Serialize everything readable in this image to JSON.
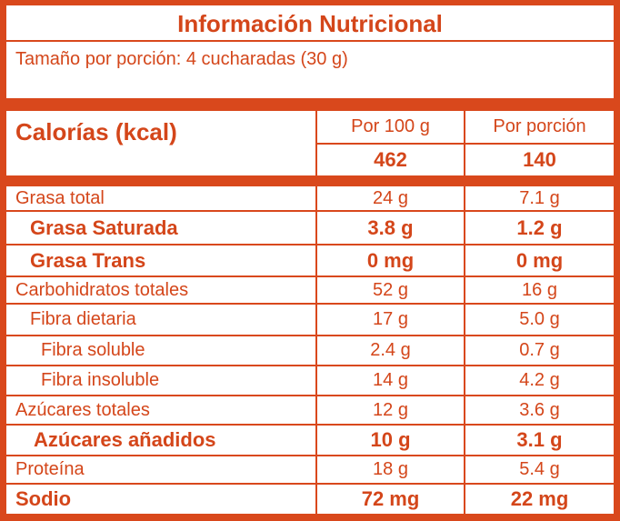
{
  "title": "Información Nutricional",
  "serving": "Tamaño por porción: 4 cucharadas (30 g)",
  "calories": {
    "label": "Calorías (kcal)",
    "headers": [
      "Por 100 g",
      "Por porción"
    ],
    "values": [
      "462",
      "140"
    ]
  },
  "rows": [
    {
      "label": "Grasa total",
      "values": [
        "24 g",
        "7.1 g"
      ]
    },
    {
      "label": "Grasa Saturada",
      "values": [
        "3.8 g",
        "1.2 g"
      ]
    },
    {
      "label": "Grasa Trans",
      "values": [
        "0 mg",
        "0 mg"
      ]
    },
    {
      "label": "Carbohidratos totales",
      "values": [
        "52 g",
        "16 g"
      ]
    },
    {
      "label": "Fibra dietaria",
      "values": [
        "17 g",
        "5.0 g"
      ]
    },
    {
      "label": "Fibra soluble",
      "values": [
        "2.4 g",
        "0.7 g"
      ]
    },
    {
      "label": "Fibra insoluble",
      "values": [
        "14 g",
        "4.2 g"
      ]
    },
    {
      "label": "Azúcares totales",
      "values": [
        "12 g",
        "3.6 g"
      ]
    },
    {
      "label": "Azúcares añadidos",
      "values": [
        "10 g",
        "3.1 g"
      ]
    },
    {
      "label": "Proteína",
      "values": [
        "18 g",
        "5.4 g"
      ]
    },
    {
      "label": "Sodio",
      "values": [
        "72 mg",
        "22 mg"
      ]
    }
  ]
}
